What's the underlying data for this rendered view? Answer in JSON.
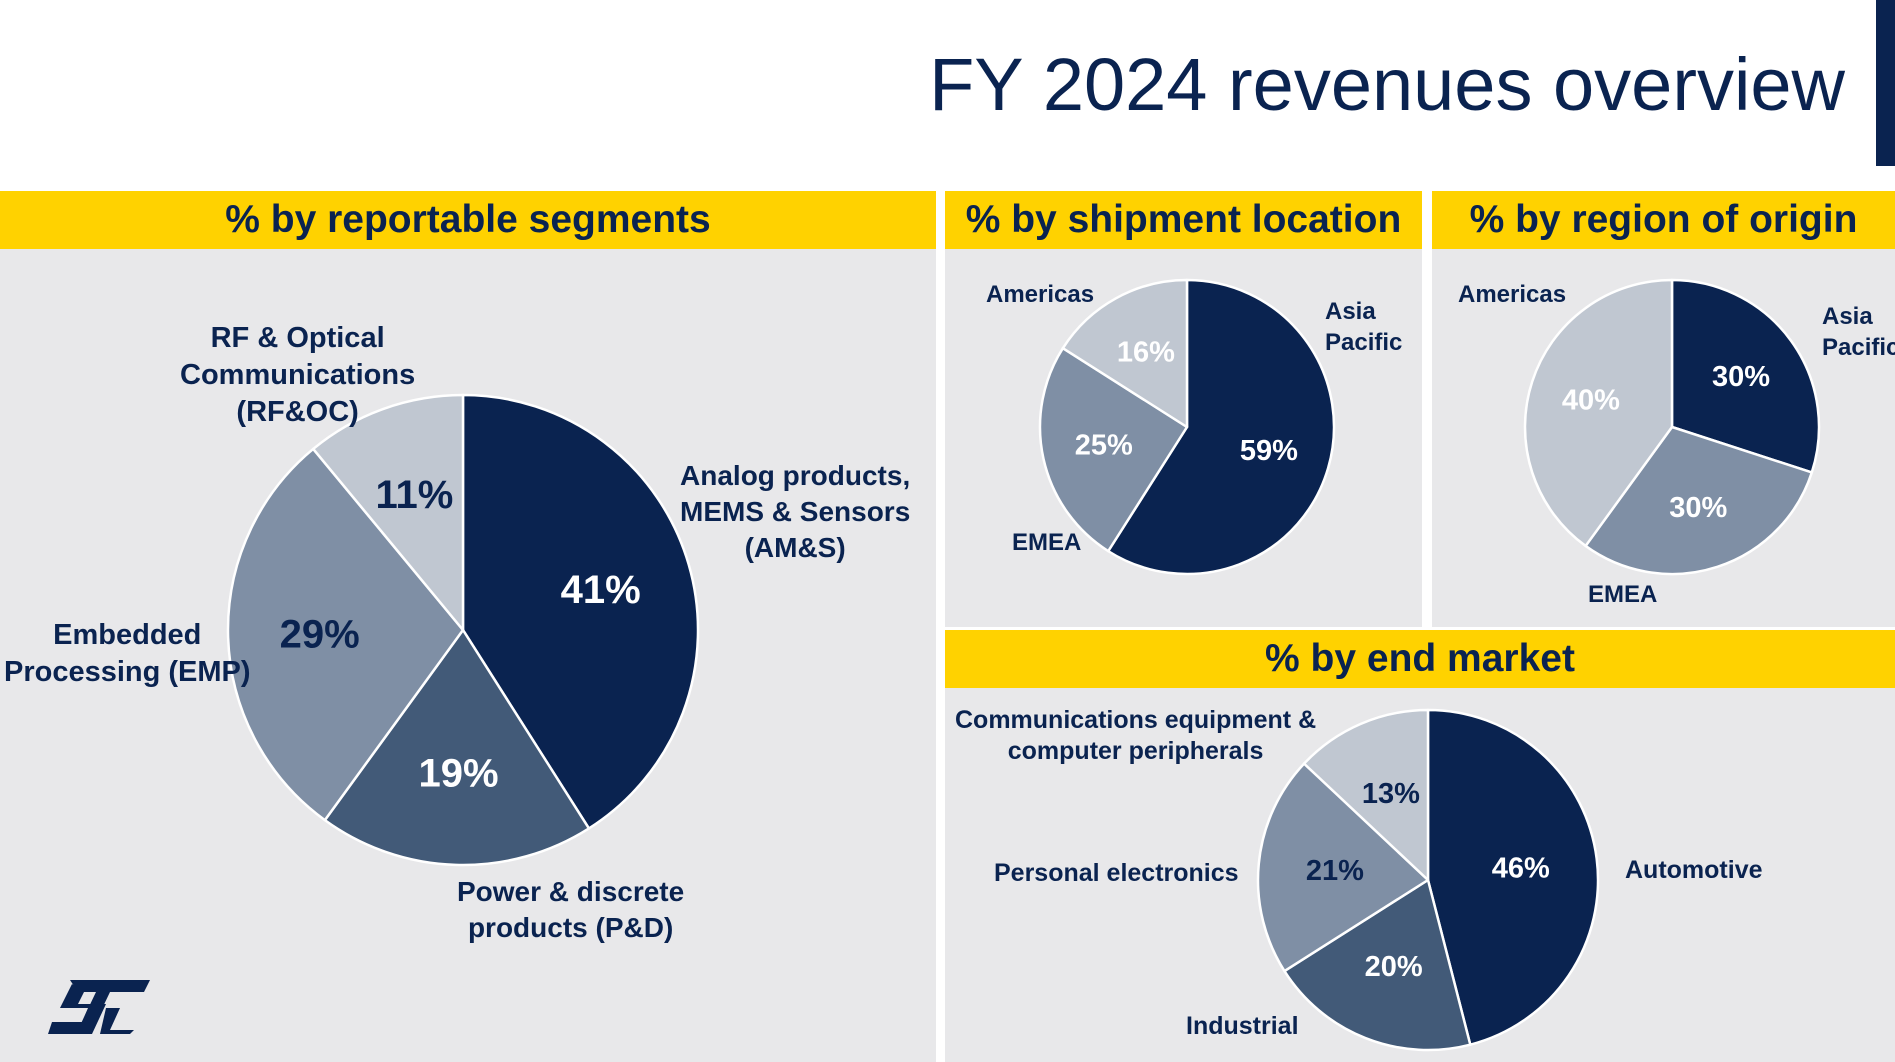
{
  "page": {
    "title": "FY 2024 revenues overview",
    "logo_text": "ST"
  },
  "colors": {
    "navy": "#0a2350",
    "slate": "#425a78",
    "gray_blue": "#7f8fa5",
    "light_gray": "#c0c7d1",
    "band_yellow": "#ffd200",
    "panel_bg": "#e8e8ea"
  },
  "panels": {
    "segments": {
      "heading": "% by reportable segments",
      "labels": {
        "amss": [
          "Analog products,",
          "MEMS & Sensors",
          "(AM&S)"
        ],
        "pd": [
          "Power & discrete",
          "products (P&D)"
        ],
        "emp": [
          "Embedded",
          "Processing (EMP)"
        ],
        "rfoc": [
          "RF & Optical",
          "Communications",
          "(RF&OC)"
        ]
      }
    },
    "shipment": {
      "heading": "% by shipment location",
      "labels": {
        "asia": [
          "Asia",
          "Pacific"
        ],
        "emea": "EMEA",
        "americas": "Americas"
      }
    },
    "origin": {
      "heading": "% by region of origin",
      "labels": {
        "asia": [
          "Asia",
          "Pacific"
        ],
        "emea": "EMEA",
        "americas": "Americas"
      }
    },
    "end_market": {
      "heading": "% by end market",
      "labels": {
        "automotive": "Automotive",
        "industrial": "Industrial",
        "personal": "Personal electronics",
        "comms": [
          "Communications equipment &",
          "computer peripherals"
        ]
      }
    }
  },
  "chart_data": [
    {
      "type": "pie",
      "title": "% by reportable segments",
      "categories": [
        "Analog products, MEMS & Sensors (AM&S)",
        "Power & discrete products (P&D)",
        "Embedded Processing (EMP)",
        "RF & Optical Communications (RF&OC)"
      ],
      "values": [
        41,
        19,
        29,
        11
      ],
      "labels": [
        "41%",
        "19%",
        "29%",
        "11%"
      ],
      "colors": [
        "#0a2350",
        "#425a78",
        "#7f8fa5",
        "#c0c7d1"
      ],
      "label_colors": [
        "#ffffff",
        "#ffffff",
        "#0a2350",
        "#0a2350"
      ]
    },
    {
      "type": "pie",
      "title": "% by shipment location",
      "categories": [
        "Asia Pacific",
        "EMEA",
        "Americas"
      ],
      "values": [
        59,
        25,
        16
      ],
      "labels": [
        "59%",
        "25%",
        "16%"
      ],
      "colors": [
        "#0a2350",
        "#7f8fa5",
        "#c0c7d1"
      ],
      "label_colors": [
        "#ffffff",
        "#ffffff",
        "#ffffff"
      ]
    },
    {
      "type": "pie",
      "title": "% by region of origin",
      "categories": [
        "Asia Pacific",
        "EMEA",
        "Americas"
      ],
      "values": [
        30,
        30,
        40
      ],
      "labels": [
        "30%",
        "30%",
        "40%"
      ],
      "colors": [
        "#0a2350",
        "#7f8fa5",
        "#c0c7d1"
      ],
      "label_colors": [
        "#ffffff",
        "#ffffff",
        "#ffffff"
      ]
    },
    {
      "type": "pie",
      "title": "% by end market",
      "categories": [
        "Automotive",
        "Industrial",
        "Personal electronics",
        "Communications equipment & computer peripherals"
      ],
      "values": [
        46,
        20,
        21,
        13
      ],
      "labels": [
        "46%",
        "20%",
        "21%",
        "13%"
      ],
      "colors": [
        "#0a2350",
        "#425a78",
        "#7f8fa5",
        "#c0c7d1"
      ],
      "label_colors": [
        "#ffffff",
        "#ffffff",
        "#0a2350",
        "#0a2350"
      ]
    }
  ]
}
